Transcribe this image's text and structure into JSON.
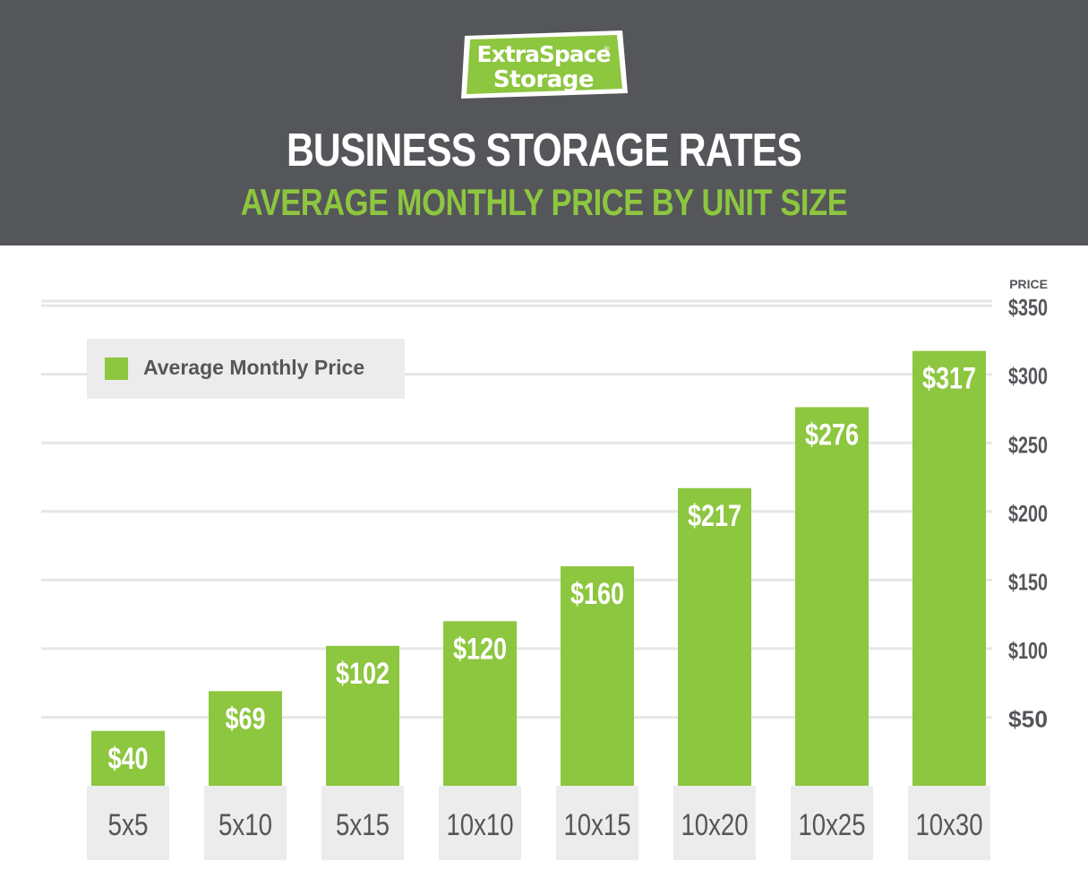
{
  "header": {
    "logo_top": "ExtraSpace",
    "logo_bottom": "Storage",
    "logo_reg": "®",
    "title": "BUSINESS STORAGE RATES",
    "subtitle": "AVERAGE MONTHLY PRICE BY UNIT SIZE"
  },
  "colors": {
    "header_bg": "#55565a",
    "accent_green": "#8dc63f",
    "bar_green": "#8dc63f",
    "category_box": "#ececec",
    "text_dark": "#55565a"
  },
  "chart_data": {
    "type": "bar",
    "title": "BUSINESS STORAGE RATES",
    "subtitle": "AVERAGE MONTHLY PRICE BY UNIT SIZE",
    "ylabel": "PRICE",
    "xlabel": "",
    "categories": [
      "5x5",
      "5x10",
      "5x15",
      "10x10",
      "10x15",
      "10x20",
      "10x25",
      "10x30"
    ],
    "series": [
      {
        "name": "Average Monthly Price",
        "values": [
          40,
          69,
          102,
          120,
          160,
          217,
          276,
          317
        ],
        "labels": [
          "$40",
          "$69",
          "$102",
          "$120",
          "$160",
          "$217",
          "$276",
          "$317"
        ]
      }
    ],
    "yticks": [
      50,
      100,
      150,
      200,
      250,
      300,
      350
    ],
    "ytick_labels": [
      "$50",
      "$100",
      "$150",
      "$200",
      "$250",
      "$300",
      "$350"
    ],
    "ylim": [
      0,
      350
    ],
    "grid": true,
    "legend": "top-left",
    "yaxis_position": "right"
  }
}
